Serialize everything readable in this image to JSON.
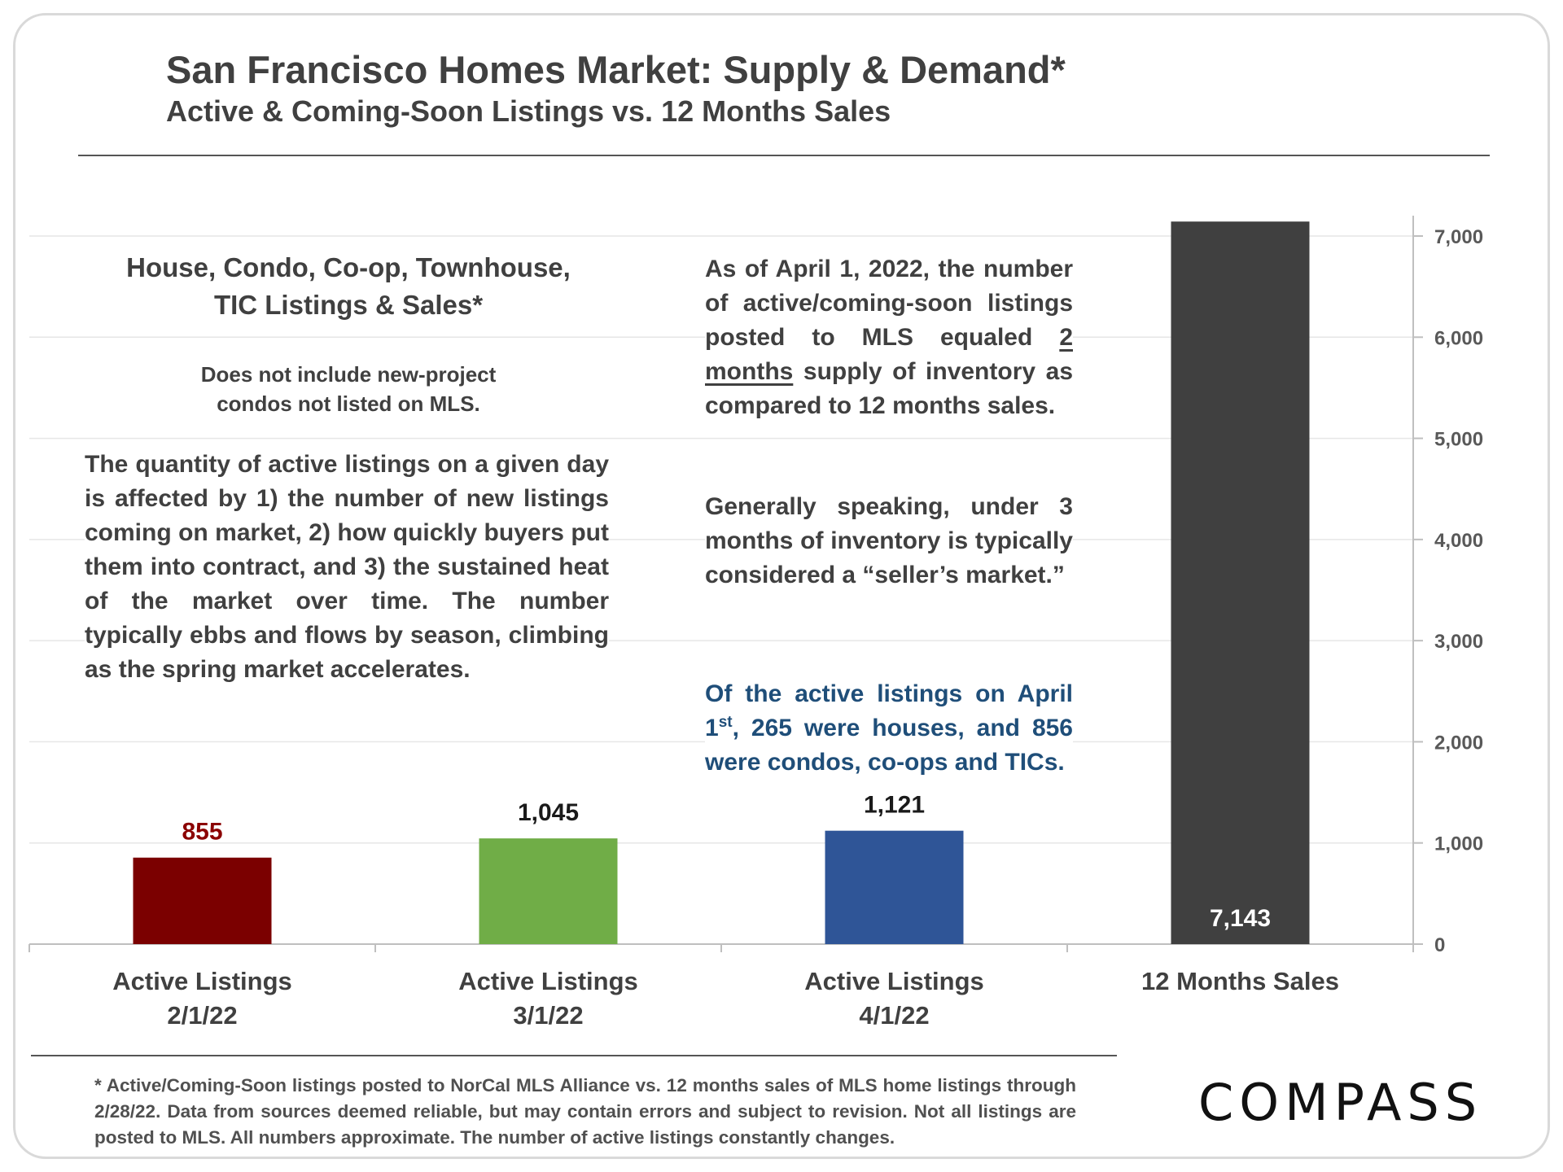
{
  "header": {
    "title": "San Francisco Homes Market: Supply & Demand*",
    "subtitle": "Active & Coming-Soon Listings vs. 12 Months Sales"
  },
  "left_panel": {
    "heading": "House, Condo, Co-op, Townhouse, TIC Listings & Sales*",
    "note": "Does not include new-project condos not listed on MLS.",
    "body": "The quantity of active listings on a given day is affected by 1) the number of new listings coming on market, 2) how quickly buyers put them into contract, and 3) the sustained heat of the market over time. The number typically ebbs and flows by season, climbing as the spring market accelerates."
  },
  "right_panel": {
    "p1_before": "As of April 1, 2022, the number of active/coming-soon listings posted to MLS equaled ",
    "p1_underlined": "2 months",
    "p1_after": " supply of inventory as compared to 12 months sales.",
    "p2": "Generally speaking, under 3 months of inventory is typically considered a “seller’s market.”",
    "p3_before": "Of the active listings on April 1",
    "p3_sup": "st",
    "p3_after": ", 265 were houses, and 856 were condos, co-ops and TICs."
  },
  "chart_data": {
    "type": "bar",
    "categories": [
      [
        "Active Listings",
        "2/1/22"
      ],
      [
        "Active Listings",
        "3/1/22"
      ],
      [
        "Active Listings",
        "4/1/22"
      ],
      [
        "12 Months Sales"
      ]
    ],
    "values": [
      855,
      1045,
      1121,
      7143
    ],
    "value_labels": [
      "855",
      "1,045",
      "1,121",
      "7,143"
    ],
    "colors": [
      "#7b0000",
      "#70ad47",
      "#2f5597",
      "#404040"
    ],
    "value_label_colors": [
      "#8b0000",
      "#1a1a1a",
      "#1a1a1a",
      "#ffffff"
    ],
    "ylim": [
      0,
      7000
    ],
    "yticks": [
      "0",
      "1,000",
      "2,000",
      "3,000",
      "4,000",
      "5,000",
      "6,000",
      "7,000"
    ],
    "y_axis_side": "right",
    "grid": true
  },
  "footer": {
    "footnote": "* Active/Coming-Soon listings posted to NorCal MLS Alliance vs. 12 months sales of MLS home listings through 2/28/22.  Data from sources deemed reliable, but may contain errors and subject to revision.  Not all listings are posted to MLS. All numbers approximate. The number of active listings constantly changes.",
    "logo": "COMPASS"
  }
}
